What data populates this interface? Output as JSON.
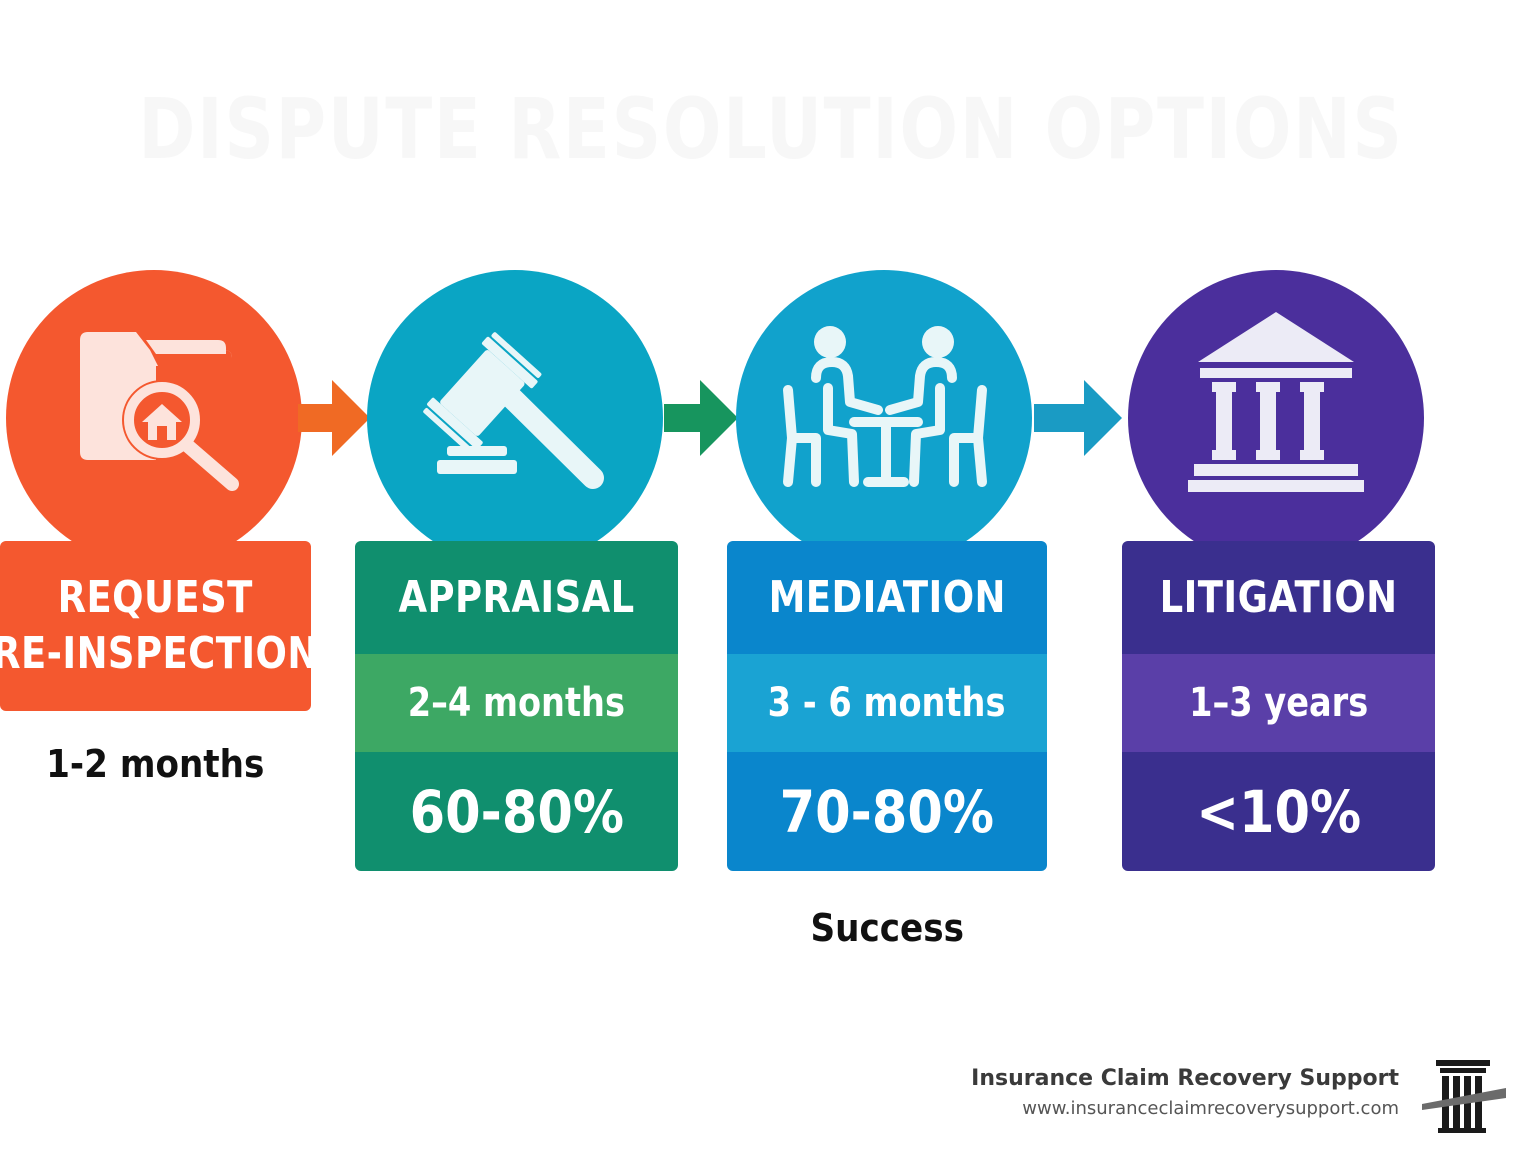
{
  "background_title": "DISPUTE RESOLUTION OPTIONS",
  "steps": [
    {
      "id": "reinspection",
      "title_line1": "REQUEST",
      "title_line2": "RE-INSPECTION",
      "duration": "1-2 months",
      "icon": "folder-house-search-icon",
      "color": "#f4582f"
    },
    {
      "id": "appraisal",
      "title": "APPRAISAL",
      "duration": "2–4 months",
      "success_rate": "60-80%",
      "icon": "gavel-icon",
      "color": "#108f6e",
      "band_color": "#3da864",
      "circle_color": "#0aa5c4"
    },
    {
      "id": "mediation",
      "title": "MEDIATION",
      "duration": "3 - 6 months",
      "success_rate": "70-80%",
      "icon": "people-meeting-table-icon",
      "color": "#0a86cc",
      "band_color": "#1aa3d3",
      "circle_color": "#11a2cc"
    },
    {
      "id": "litigation",
      "title": "LITIGATION",
      "duration": "1–3 years",
      "success_rate": "<10%",
      "icon": "courthouse-icon",
      "color": "#3a2f8e",
      "band_color": "#5a3fa8",
      "circle_color": "#4b2f9c"
    }
  ],
  "success_label": "Success",
  "footer": {
    "company": "Insurance Claim Recovery Support",
    "url": "www.insuranceclaimrecoverysupport.com",
    "logo_icon": "column-logo-icon"
  }
}
